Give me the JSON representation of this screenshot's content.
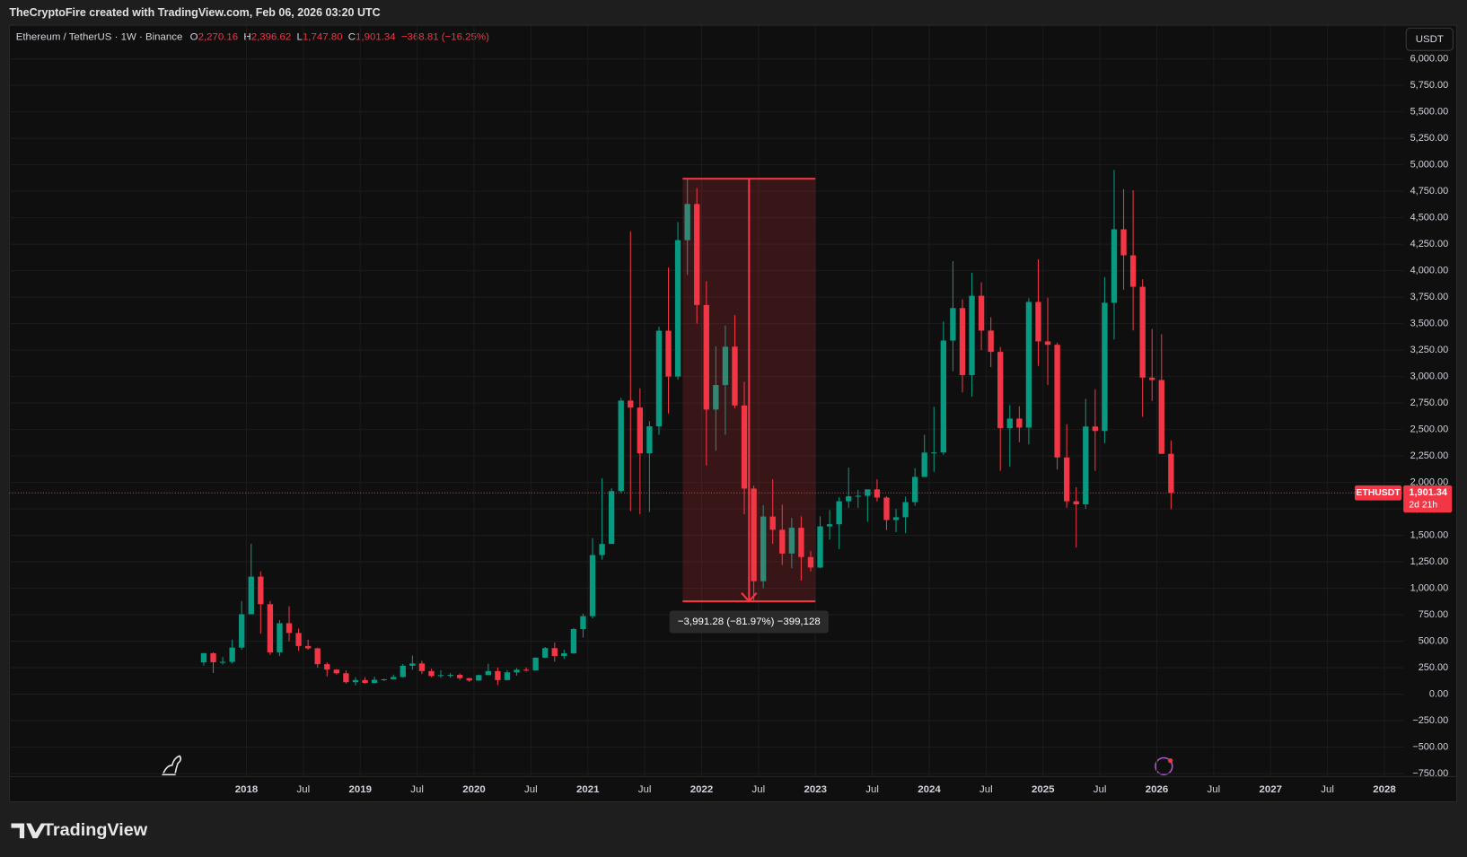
{
  "header": {
    "attribution": "TheCryptoFire created with TradingView.com, Feb 06, 2026 03:20 UTC",
    "symbol": "Ethereum / TetherUS · 1W · Binance",
    "ohlc": [
      {
        "key": "O",
        "value": "2,270.16"
      },
      {
        "key": "H",
        "value": "2,396.62"
      },
      {
        "key": "L",
        "value": "1,747.80"
      },
      {
        "key": "C",
        "value": "1,901.34"
      }
    ],
    "change": "−368.81 (−16.25%)"
  },
  "currency_button": "USDT",
  "brand": "TradingView",
  "chart_data": {
    "type": "candlestick",
    "x": [
      "2017-08",
      "2017-09",
      "2017-10",
      "2017-11",
      "2017-12",
      "2018-01",
      "2018-02",
      "2018-03",
      "2018-04",
      "2018-05",
      "2018-06",
      "2018-07",
      "2018-08",
      "2018-09",
      "2018-10",
      "2018-11",
      "2018-12",
      "2019-01",
      "2019-02",
      "2019-03",
      "2019-04",
      "2019-05",
      "2019-06",
      "2019-07",
      "2019-08",
      "2019-09",
      "2019-10",
      "2019-11",
      "2019-12",
      "2020-01",
      "2020-02",
      "2020-03",
      "2020-04",
      "2020-05",
      "2020-06",
      "2020-07",
      "2020-08",
      "2020-09",
      "2020-10",
      "2020-11",
      "2020-12",
      "2021-01",
      "2021-02",
      "2021-03",
      "2021-04",
      "2021-05",
      "2021-06",
      "2021-07",
      "2021-08",
      "2021-09",
      "2021-10",
      "2021-11",
      "2021-12",
      "2022-01",
      "2022-02",
      "2022-03",
      "2022-04",
      "2022-05",
      "2022-06",
      "2022-07",
      "2022-08",
      "2022-09",
      "2022-10",
      "2022-11",
      "2022-12",
      "2023-01",
      "2023-02",
      "2023-03",
      "2023-04",
      "2023-05",
      "2023-06",
      "2023-07",
      "2023-08",
      "2023-09",
      "2023-10",
      "2023-11",
      "2023-12",
      "2024-01",
      "2024-02",
      "2024-03",
      "2024-04",
      "2024-05",
      "2024-06",
      "2024-07",
      "2024-08",
      "2024-09",
      "2024-10",
      "2024-11",
      "2024-12",
      "2025-01",
      "2025-02",
      "2025-03",
      "2025-04",
      "2025-05",
      "2025-06",
      "2025-07",
      "2025-08",
      "2025-09",
      "2025-10",
      "2025-11",
      "2025-12",
      "2026-01",
      "2026-02"
    ],
    "open": [
      300,
      387,
      302,
      305,
      440,
      755,
      1110,
      850,
      395,
      670,
      578,
      455,
      433,
      283,
      232,
      197,
      113,
      133,
      106,
      136,
      141,
      162,
      268,
      290,
      218,
      172,
      180,
      182,
      151,
      129,
      180,
      218,
      133,
      206,
      231,
      225,
      345,
      435,
      360,
      386,
      615,
      737,
      1314,
      1419,
      1918,
      2773,
      2707,
      2275,
      2530,
      3433,
      3000,
      4288,
      4630,
      3676,
      2688,
      2920,
      3282,
      2727,
      1942,
      1067,
      1678,
      1553,
      1328,
      1572,
      1295,
      1196,
      1585,
      1605,
      1822,
      1869,
      1874,
      1934,
      1857,
      1645,
      1671,
      1814,
      2052,
      2282,
      2283,
      3340,
      3647,
      3014,
      3763,
      3434,
      3233,
      2513,
      2603,
      2518,
      3705,
      3332,
      3300,
      2236,
      1822,
      1793,
      2528,
      2486,
      3697,
      4391,
      4145,
      3848,
      2990,
      2967,
      2270.16
    ],
    "high": [
      390,
      395,
      350,
      515,
      880,
      1420,
      1160,
      880,
      700,
      830,
      620,
      515,
      440,
      300,
      235,
      225,
      160,
      160,
      165,
      145,
      185,
      285,
      365,
      315,
      240,
      225,
      200,
      195,
      155,
      185,
      288,
      253,
      227,
      246,
      253,
      347,
      445,
      487,
      420,
      625,
      760,
      1475,
      2040,
      1945,
      2800,
      4372,
      2890,
      2580,
      3470,
      4030,
      4460,
      4868,
      4780,
      3900,
      3285,
      3480,
      3580,
      2950,
      1970,
      1785,
      2030,
      1790,
      1665,
      1680,
      1352,
      1680,
      1740,
      1860,
      2140,
      1930,
      1930,
      2030,
      1870,
      1750,
      1865,
      2135,
      2450,
      2715,
      3520,
      4090,
      3730,
      3980,
      3890,
      3560,
      3280,
      2730,
      2720,
      3740,
      4108,
      3745,
      3320,
      2550,
      1955,
      2790,
      2880,
      3940,
      4950,
      4770,
      4760,
      3918,
      3450,
      3400,
      2396.62
    ],
    "low": [
      270,
      200,
      280,
      290,
      420,
      755,
      570,
      370,
      360,
      500,
      410,
      420,
      250,
      167,
      185,
      100,
      82,
      100,
      102,
      125,
      140,
      158,
      230,
      190,
      160,
      153,
      155,
      135,
      116,
      126,
      180,
      86,
      130,
      175,
      214,
      222,
      340,
      308,
      333,
      380,
      535,
      715,
      1270,
      1420,
      1900,
      1730,
      1700,
      1720,
      2450,
      2650,
      2970,
      3960,
      3500,
      2160,
      2300,
      2450,
      2700,
      1700,
      880,
      1000,
      1420,
      1220,
      1190,
      1073,
      1160,
      1190,
      1460,
      1370,
      1760,
      1760,
      1630,
      1820,
      1550,
      1530,
      1520,
      1780,
      2050,
      2100,
      2260,
      3050,
      2850,
      2810,
      3250,
      3090,
      2110,
      2150,
      2380,
      2360,
      3100,
      2920,
      2120,
      1760,
      1385,
      1750,
      2110,
      2370,
      3350,
      3820,
      3435,
      2620,
      2770,
      2270,
      1747.8
    ],
    "close": [
      387,
      302,
      305,
      440,
      755,
      1110,
      850,
      395,
      670,
      578,
      455,
      433,
      283,
      232,
      197,
      113,
      133,
      106,
      136,
      141,
      162,
      268,
      290,
      218,
      172,
      180,
      182,
      151,
      129,
      180,
      218,
      133,
      206,
      231,
      225,
      345,
      435,
      360,
      386,
      615,
      737,
      1314,
      1419,
      1918,
      2773,
      2707,
      2275,
      2530,
      3433,
      3000,
      4288,
      4630,
      3676,
      2688,
      2920,
      3282,
      2727,
      1942,
      1067,
      1678,
      1553,
      1328,
      1572,
      1295,
      1196,
      1585,
      1605,
      1822,
      1869,
      1874,
      1934,
      1857,
      1645,
      1671,
      1814,
      2052,
      2282,
      2283,
      3340,
      3647,
      3014,
      3763,
      3434,
      3233,
      2513,
      2603,
      2518,
      3705,
      3332,
      3300,
      2236,
      1822,
      1793,
      2528,
      2486,
      3697,
      4391,
      4145,
      3848,
      2990,
      2967,
      2270,
      1901.34
    ],
    "up_color": "#089981",
    "down_color": "#f23645",
    "xlim": [
      "2015-12",
      "2028-03"
    ],
    "ylim": [
      -778,
      6318
    ],
    "xticks": [
      {
        "value": "2018-01",
        "label": "2018"
      },
      {
        "value": "2018-07",
        "label": "Jul"
      },
      {
        "value": "2019-01",
        "label": "2019"
      },
      {
        "value": "2019-07",
        "label": "Jul"
      },
      {
        "value": "2020-01",
        "label": "2020"
      },
      {
        "value": "2020-07",
        "label": "Jul"
      },
      {
        "value": "2021-01",
        "label": "2021"
      },
      {
        "value": "2021-07",
        "label": "Jul"
      },
      {
        "value": "2022-01",
        "label": "2022"
      },
      {
        "value": "2022-07",
        "label": "Jul"
      },
      {
        "value": "2023-01",
        "label": "2023"
      },
      {
        "value": "2023-07",
        "label": "Jul"
      },
      {
        "value": "2024-01",
        "label": "2024"
      },
      {
        "value": "2024-07",
        "label": "Jul"
      },
      {
        "value": "2025-01",
        "label": "2025"
      },
      {
        "value": "2025-07",
        "label": "Jul"
      },
      {
        "value": "2026-01",
        "label": "2026"
      },
      {
        "value": "2026-07",
        "label": "Jul"
      },
      {
        "value": "2027-01",
        "label": "2027"
      },
      {
        "value": "2027-07",
        "label": "Jul"
      },
      {
        "value": "2028-01",
        "label": "2028"
      }
    ],
    "yticks": [
      {
        "value": -750,
        "label": "−750.00"
      },
      {
        "value": -500,
        "label": "−500.00"
      },
      {
        "value": -250,
        "label": "−250.00"
      },
      {
        "value": 0,
        "label": "0.00"
      },
      {
        "value": 250,
        "label": "250.00"
      },
      {
        "value": 500,
        "label": "500.00"
      },
      {
        "value": 750,
        "label": "750.00"
      },
      {
        "value": 1000,
        "label": "1,000.00"
      },
      {
        "value": 1250,
        "label": "1,250.00"
      },
      {
        "value": 1500,
        "label": "1,500.00"
      },
      {
        "value": 1750,
        "label": "1,750.00"
      },
      {
        "value": 2000,
        "label": "2,000.00"
      },
      {
        "value": 2250,
        "label": "2,250.00"
      },
      {
        "value": 2500,
        "label": "2,500.00"
      },
      {
        "value": 2750,
        "label": "2,750.00"
      },
      {
        "value": 3000,
        "label": "3,000.00"
      },
      {
        "value": 3250,
        "label": "3,250.00"
      },
      {
        "value": 3500,
        "label": "3,500.00"
      },
      {
        "value": 3750,
        "label": "3,750.00"
      },
      {
        "value": 4000,
        "label": "4,000.00"
      },
      {
        "value": 4250,
        "label": "4,250.00"
      },
      {
        "value": 4500,
        "label": "4,500.00"
      },
      {
        "value": 4750,
        "label": "4,750.00"
      },
      {
        "value": 5000,
        "label": "5,000.00"
      },
      {
        "value": 5250,
        "label": "5,250.00"
      },
      {
        "value": 5500,
        "label": "5,500.00"
      },
      {
        "value": 5750,
        "label": "5,750.00"
      },
      {
        "value": 6000,
        "label": "6,000.00"
      }
    ],
    "grid": true,
    "last_price": {
      "symbol": "ETHUSDT",
      "value": 1901.34,
      "label": "1,901.34",
      "countdown": "2d 21h"
    },
    "measure": {
      "from": "2021-11",
      "to": "2023-01",
      "start": 4868.78,
      "end": 877.5,
      "label": "−3,991.28 (−81.97%) −399,128"
    }
  }
}
